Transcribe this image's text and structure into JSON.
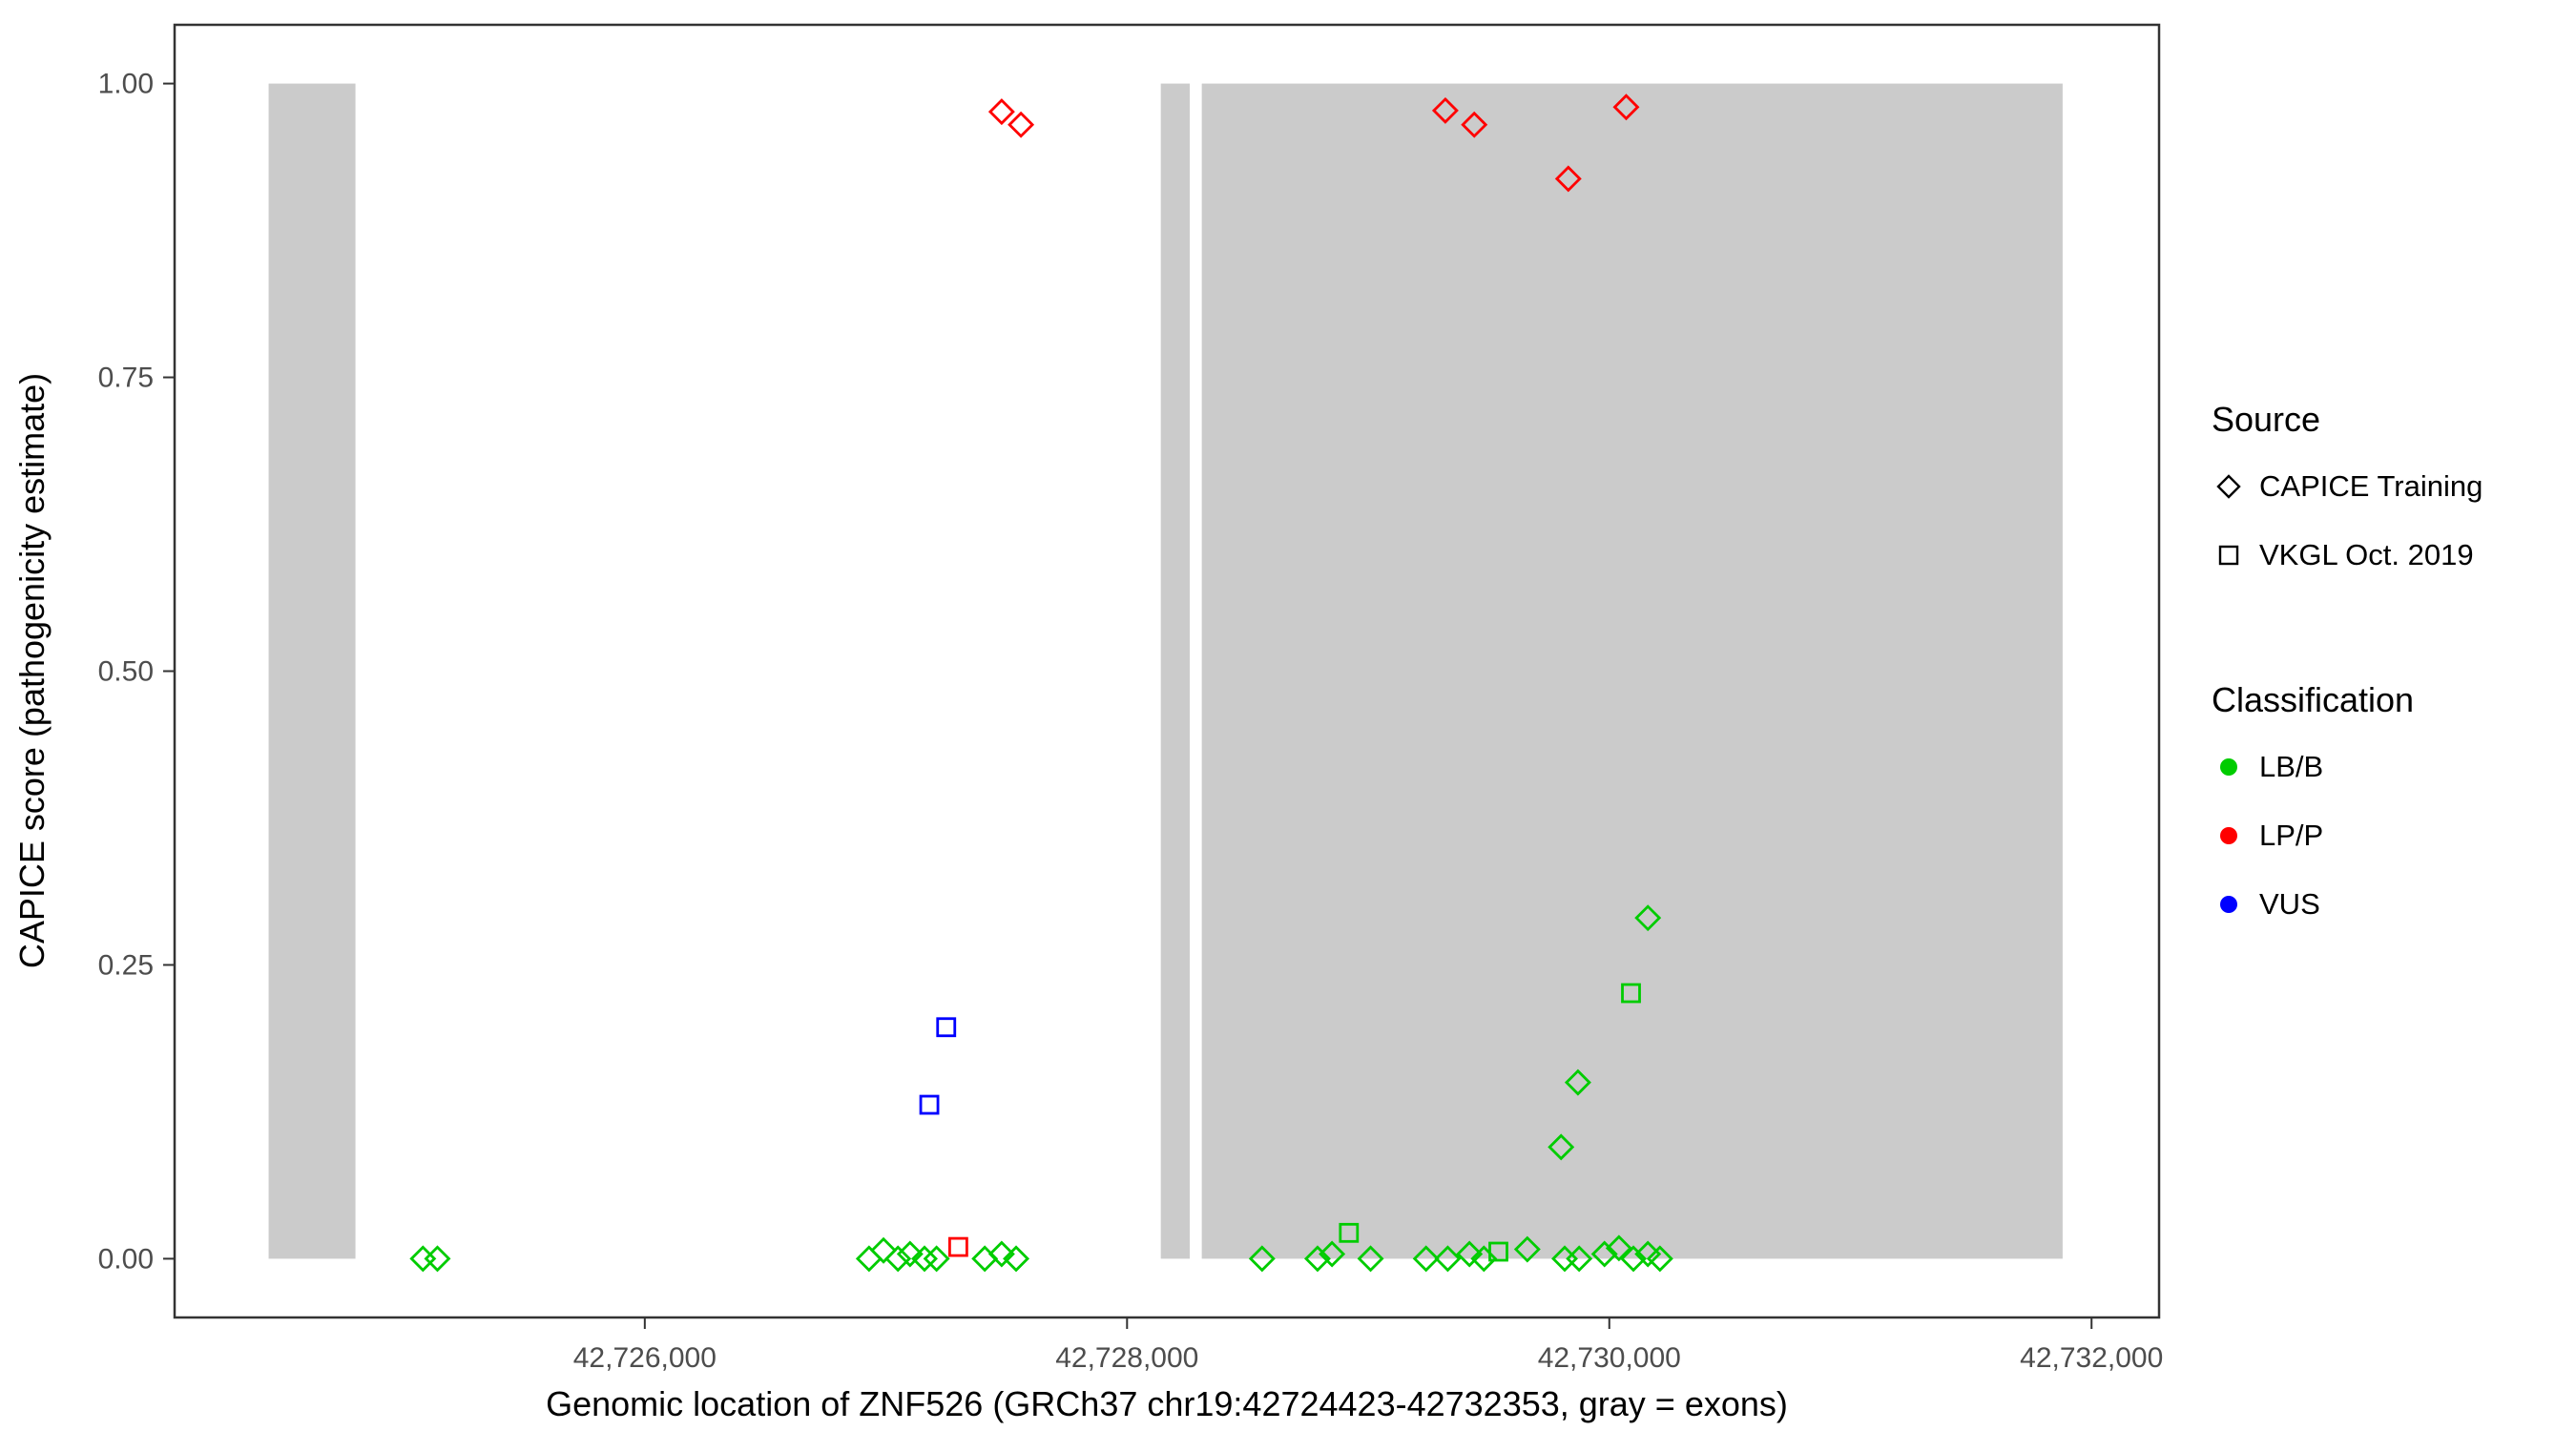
{
  "legend": {
    "source": {
      "title": "Source",
      "items": [
        {
          "label": "CAPICE Training",
          "shape": "diamond"
        },
        {
          "label": "VKGL Oct. 2019",
          "shape": "square"
        }
      ]
    },
    "classification": {
      "title": "Classification",
      "items": [
        {
          "label": "LB/B",
          "color": "#00CC00"
        },
        {
          "label": "LP/P",
          "color": "#FF0000"
        },
        {
          "label": "VUS",
          "color": "#0000FF"
        }
      ]
    }
  },
  "chart_data": {
    "type": "scatter",
    "title": "",
    "xlabel": "Genomic location of ZNF526 (GRCh37 chr19:42724423-42732353, gray = exons)",
    "ylabel": "CAPICE score (pathogenicity estimate)",
    "xlim": [
      42724050,
      42732280
    ],
    "ylim": [
      -0.05,
      1.05
    ],
    "grid": false,
    "legend_position": "right",
    "exon_color": "#CBCBCB",
    "axis_color": "#333333",
    "exons": [
      {
        "start": 42724440,
        "end": 42724800
      },
      {
        "start": 42728140,
        "end": 42728260
      },
      {
        "start": 42728310,
        "end": 42731880
      }
    ],
    "x_ticks": [
      {
        "value": 42726000,
        "label": "42,726,000"
      },
      {
        "value": 42728000,
        "label": "42,728,000"
      },
      {
        "value": 42730000,
        "label": "42,730,000"
      },
      {
        "value": 42732000,
        "label": "42,732,000"
      }
    ],
    "y_ticks": [
      {
        "value": 0.0,
        "label": "0.00"
      },
      {
        "value": 0.25,
        "label": "0.25"
      },
      {
        "value": 0.5,
        "label": "0.50"
      },
      {
        "value": 0.75,
        "label": "0.75"
      },
      {
        "value": 1.0,
        "label": "1.00"
      }
    ],
    "series": [
      {
        "name": "CAPICE Training / LP/P",
        "source": "CAPICE Training",
        "classification": "LP/P",
        "shape": "diamond",
        "color": "#FF0000",
        "points": [
          [
            42727480,
            0.976
          ],
          [
            42727560,
            0.965
          ],
          [
            42729320,
            0.977
          ],
          [
            42729440,
            0.965
          ],
          [
            42729830,
            0.919
          ],
          [
            42730070,
            0.98
          ]
        ]
      },
      {
        "name": "CAPICE Training / LB/B",
        "source": "CAPICE Training",
        "classification": "LB/B",
        "shape": "diamond",
        "color": "#00CC00",
        "points": [
          [
            42725080,
            0.0
          ],
          [
            42725140,
            0.0
          ],
          [
            42726930,
            0.0
          ],
          [
            42726990,
            0.007
          ],
          [
            42727050,
            0.0
          ],
          [
            42727100,
            0.004
          ],
          [
            42727160,
            0.0
          ],
          [
            42727210,
            0.0
          ],
          [
            42727410,
            0.0
          ],
          [
            42727480,
            0.004
          ],
          [
            42727540,
            0.0
          ],
          [
            42728560,
            0.0
          ],
          [
            42728790,
            0.0
          ],
          [
            42728850,
            0.004
          ],
          [
            42729010,
            0.0
          ],
          [
            42729240,
            0.0
          ],
          [
            42729330,
            0.0
          ],
          [
            42729420,
            0.004
          ],
          [
            42729480,
            0.0
          ],
          [
            42729660,
            0.008
          ],
          [
            42729800,
            0.095
          ],
          [
            42729815,
            0.0
          ],
          [
            42729870,
            0.15
          ],
          [
            42729875,
            0.0
          ],
          [
            42729980,
            0.004
          ],
          [
            42730040,
            0.009
          ],
          [
            42730100,
            0.0
          ],
          [
            42730160,
            0.29
          ],
          [
            42730160,
            0.004
          ],
          [
            42730210,
            0.0
          ]
        ]
      },
      {
        "name": "VKGL Oct. 2019 / VUS",
        "source": "VKGL Oct. 2019",
        "classification": "VUS",
        "shape": "square",
        "color": "#0000FF",
        "points": [
          [
            42727180,
            0.131
          ],
          [
            42727250,
            0.197
          ]
        ]
      },
      {
        "name": "VKGL Oct. 2019 / LP/P",
        "source": "VKGL Oct. 2019",
        "classification": "LP/P",
        "shape": "square",
        "color": "#FF0000",
        "points": [
          [
            42727300,
            0.01
          ]
        ]
      },
      {
        "name": "VKGL Oct. 2019 / LB/B",
        "source": "VKGL Oct. 2019",
        "classification": "LB/B",
        "shape": "square",
        "color": "#00CC00",
        "points": [
          [
            42728920,
            0.022
          ],
          [
            42729540,
            0.006
          ],
          [
            42730090,
            0.226
          ]
        ]
      }
    ]
  }
}
